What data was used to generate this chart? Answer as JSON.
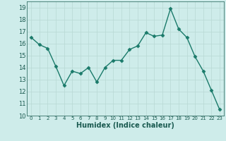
{
  "x": [
    0,
    1,
    2,
    3,
    4,
    5,
    6,
    7,
    8,
    9,
    10,
    11,
    12,
    13,
    14,
    15,
    16,
    17,
    18,
    19,
    20,
    21,
    22,
    23
  ],
  "y": [
    16.5,
    15.9,
    15.6,
    14.1,
    12.5,
    13.7,
    13.5,
    14.0,
    12.8,
    14.0,
    14.6,
    14.6,
    15.5,
    15.8,
    16.9,
    16.6,
    16.7,
    18.9,
    17.2,
    16.5,
    14.9,
    13.7,
    12.1,
    10.5
  ],
  "line_color": "#1a7a6a",
  "marker": "D",
  "markersize": 2.5,
  "linewidth": 1.0,
  "xlabel": "Humidex (Indice chaleur)",
  "xlabel_fontsize": 7,
  "bg_color": "#ceecea",
  "grid_color": "#b8d8d4",
  "tick_color": "#1a5a50",
  "ylim": [
    10,
    19.5
  ],
  "xlim": [
    -0.5,
    23.5
  ],
  "yticks": [
    10,
    11,
    12,
    13,
    14,
    15,
    16,
    17,
    18,
    19
  ],
  "xticks": [
    0,
    1,
    2,
    3,
    4,
    5,
    6,
    7,
    8,
    9,
    10,
    11,
    12,
    13,
    14,
    15,
    16,
    17,
    18,
    19,
    20,
    21,
    22,
    23
  ],
  "ytick_fontsize": 6,
  "xtick_fontsize": 5
}
